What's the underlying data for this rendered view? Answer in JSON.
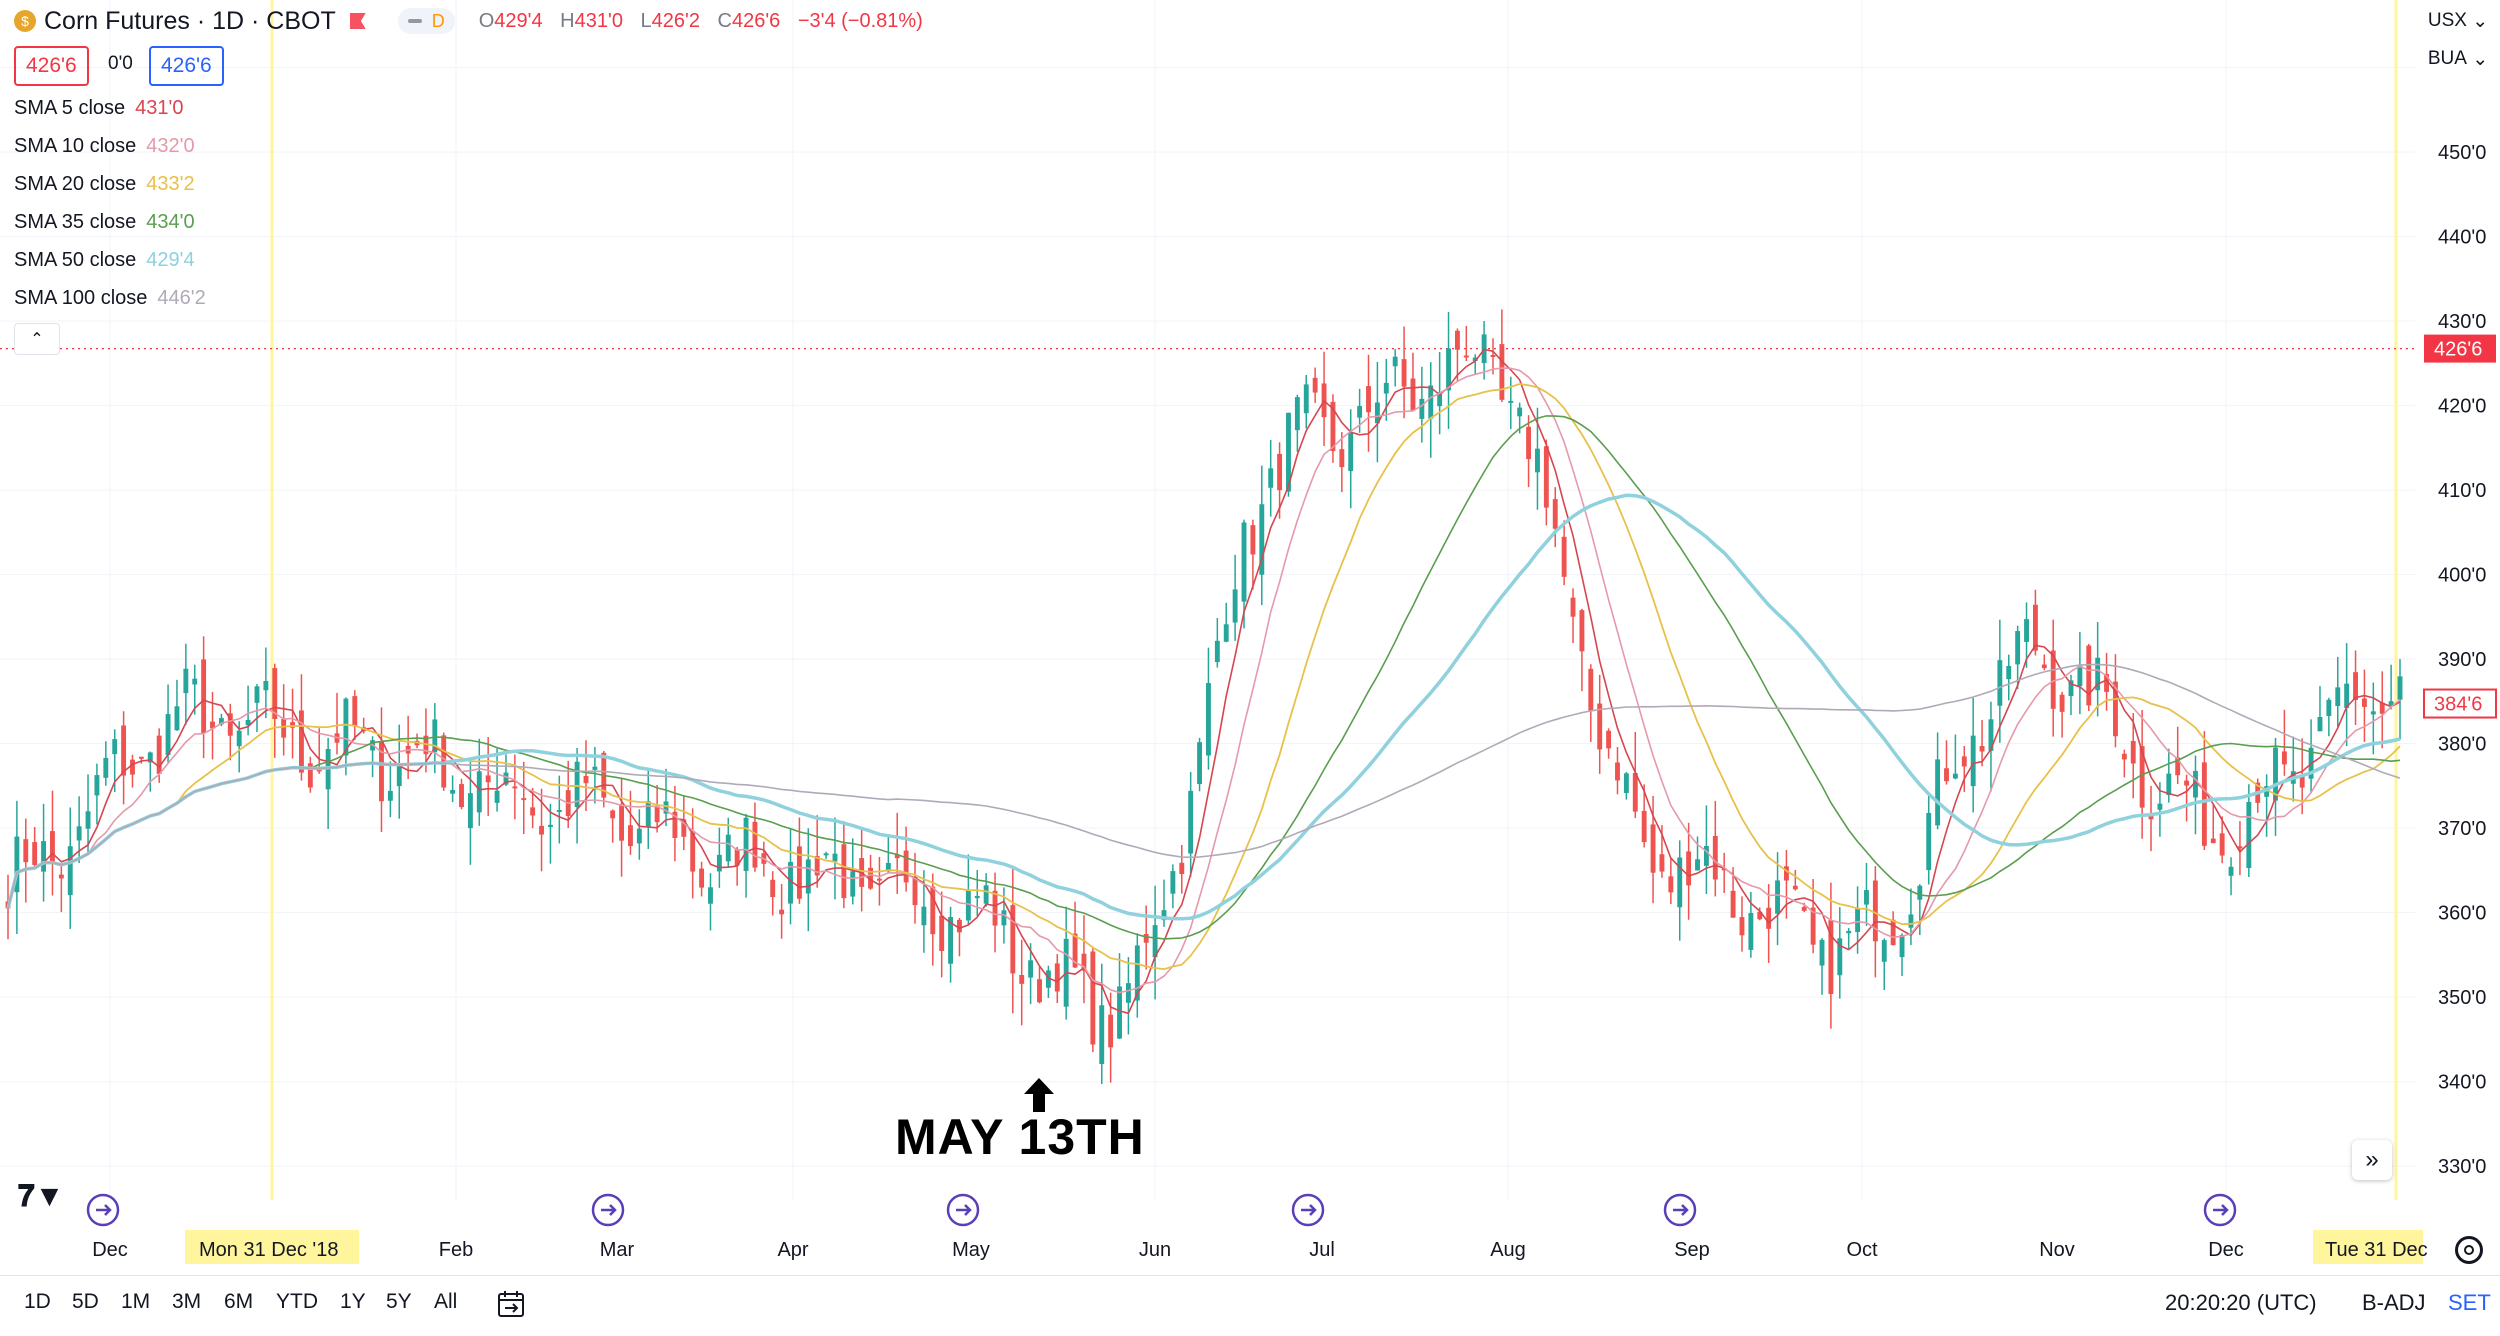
{
  "header": {
    "title": "Corn Futures · 1D · CBOT",
    "badge": "D",
    "ohlc": [
      {
        "k": "O",
        "v": "429'4"
      },
      {
        "k": "H",
        "v": "431'0"
      },
      {
        "k": "L",
        "v": "426'2"
      },
      {
        "k": "C",
        "v": "426'6"
      }
    ],
    "change": "−3'4 (−0.81%)",
    "sell_box": "426'6",
    "spread": "0'0",
    "buy_box": "426'6"
  },
  "colors": {
    "up": "#26a69a",
    "down": "#ef5350",
    "sma5": "#d6464f",
    "sma10": "#e49aaa",
    "sma20": "#e8c14a",
    "sma35": "#5a9e4f",
    "sma50": "#8fd1dd",
    "sma100": "#b0aab8",
    "grid": "#f0f3fa",
    "highlight": "#fff59d"
  },
  "indicators": [
    {
      "name": "SMA 5 close",
      "value": "431'0",
      "color": "#d6464f"
    },
    {
      "name": "SMA 10 close",
      "value": "432'0",
      "color": "#e49aaa"
    },
    {
      "name": "SMA 20 close",
      "value": "433'2",
      "color": "#e8c14a"
    },
    {
      "name": "SMA 35 close",
      "value": "434'0",
      "color": "#5a9e4f"
    },
    {
      "name": "SMA 50 close",
      "value": "429'4",
      "color": "#8fd1dd"
    },
    {
      "name": "SMA 100 close",
      "value": "446'2",
      "color": "#b0aab8"
    }
  ],
  "right_controls": {
    "currency": "USX",
    "unit": "BUA"
  },
  "chart_data": {
    "type": "candlestick",
    "x_axis_labels": [
      "Dec",
      "Mon 31 Dec '18",
      "Feb",
      "Mar",
      "Apr",
      "May",
      "Jun",
      "Jul",
      "Aug",
      "Sep",
      "Oct",
      "Nov",
      "Dec",
      "Tue 31 Dec"
    ],
    "y_axis_labels": [
      "330'0",
      "340'0",
      "350'0",
      "360'0",
      "370'0",
      "380'0",
      "390'0",
      "400'0",
      "410'0",
      "420'0",
      "430'0",
      "440'0",
      "450'0"
    ],
    "ylim": [
      326,
      468
    ],
    "last_price_label": "426'6",
    "last_price": 426.75,
    "right_price_label": "384'6",
    "right_price": 384.75,
    "annotation": "MAY 13TH",
    "annotation_month_index": 5.38,
    "months": [
      "Nov",
      "Dec",
      "Jan",
      "Feb",
      "Mar",
      "Apr",
      "May",
      "Jun",
      "Jul",
      "Aug",
      "Sep",
      "Oct",
      "Nov",
      "Dec"
    ],
    "monthly_path": [
      {
        "month": "Nov",
        "close": 364
      },
      {
        "month": "Dec",
        "close": 383
      },
      {
        "month": "Jan",
        "close": 379
      },
      {
        "month": "Feb",
        "close": 373
      },
      {
        "month": "Mar",
        "close": 366
      },
      {
        "month": "Apr",
        "close": 362
      },
      {
        "month": "May",
        "close": 349
      },
      {
        "month": "Jun",
        "close": 416
      },
      {
        "month": "Jul",
        "close": 425
      },
      {
        "month": "Aug",
        "close": 366
      },
      {
        "month": "Sep",
        "close": 356
      },
      {
        "month": "Oct",
        "close": 390
      },
      {
        "month": "Nov",
        "close": 371
      },
      {
        "month": "Dec",
        "close": 387
      }
    ]
  },
  "timeframes": [
    "1D",
    "5D",
    "1M",
    "3M",
    "6M",
    "YTD",
    "1Y",
    "5Y",
    "All"
  ],
  "status": {
    "time": "20:20:20 (UTC)",
    "adj": "B-ADJ",
    "set": "SET"
  }
}
